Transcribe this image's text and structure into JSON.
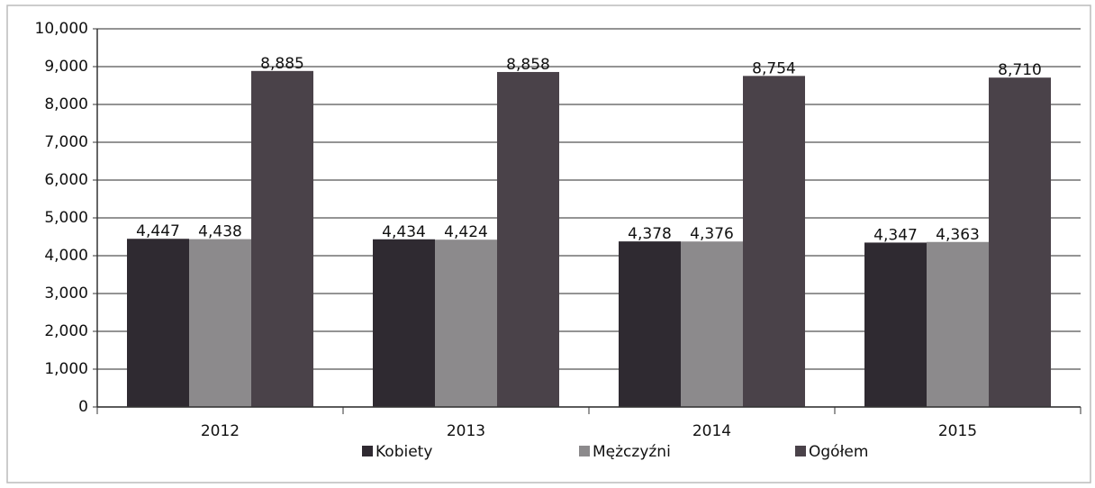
{
  "chart_data": {
    "type": "bar",
    "categories": [
      "2012",
      "2013",
      "2014",
      "2015"
    ],
    "series": [
      {
        "name": "Kobiety",
        "color": "#2f2a31",
        "values": [
          4447,
          4434,
          4378,
          4347
        ],
        "value_labels": [
          "4,447",
          "4,434",
          "4,378",
          "4,347"
        ]
      },
      {
        "name": "Mężczyźni",
        "color": "#8c8a8c",
        "values": [
          4438,
          4424,
          4376,
          4363
        ],
        "value_labels": [
          "4,438",
          "4,424",
          "4,376",
          "4,363"
        ]
      },
      {
        "name": "Ogółem",
        "color": "#4a4249",
        "values": [
          8885,
          8858,
          8754,
          8710
        ],
        "value_labels": [
          "8,885",
          "8,858",
          "8,754",
          "8,710"
        ]
      }
    ],
    "ylim": [
      0,
      10000
    ],
    "yticks": [
      0,
      {
        "value": 1000,
        "label": "1,000"
      },
      {
        "value": 2000,
        "label": "2,000"
      },
      {
        "value": 3000,
        "label": "3,000"
      },
      {
        "value": 4000,
        "label": "4,000"
      },
      {
        "value": 5000,
        "label": "5,000"
      },
      {
        "value": 6000,
        "label": "6,000"
      },
      {
        "value": 7000,
        "label": "7,000"
      },
      {
        "value": 8000,
        "label": "8,000"
      },
      {
        "value": 9000,
        "label": "9,000"
      },
      {
        "value": 10000,
        "label": "10,000"
      }
    ],
    "grid": true,
    "legend": "bottom"
  }
}
